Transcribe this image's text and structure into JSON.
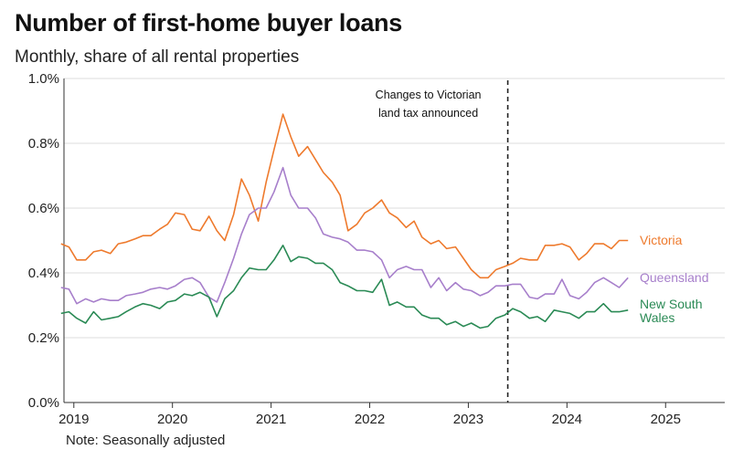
{
  "chart_data": {
    "type": "line",
    "title": "Number of first-home buyer loans",
    "subtitle": "Monthly, share of all rental properties",
    "note": "Note: Seasonally adjusted",
    "xlim": [
      2018.9,
      2025.6
    ],
    "ylim": [
      0,
      1.0
    ],
    "grid": true,
    "x_ticks": [
      2019,
      2020,
      2021,
      2022,
      2023,
      2024,
      2025
    ],
    "x_tick_labels": [
      "2019",
      "2020",
      "2021",
      "2022",
      "2023",
      "2024",
      "2025"
    ],
    "y_ticks": [
      0,
      0.2,
      0.4,
      0.6,
      0.8,
      1.0
    ],
    "y_tick_labels": [
      "0.0%",
      "0.2%",
      "0.4%",
      "0.6%",
      "0.8%",
      "1.0%"
    ],
    "annotation": {
      "x": 2023.4,
      "lines": [
        "Changes to Victorian",
        "land tax announced"
      ]
    },
    "series": [
      {
        "name": "Victoria",
        "label_lines": [
          "Victoria"
        ],
        "color": "#ee7a2d",
        "x": [
          2018.87,
          2018.95,
          2019.03,
          2019.12,
          2019.2,
          2019.28,
          2019.37,
          2019.45,
          2019.53,
          2019.62,
          2019.7,
          2019.78,
          2019.87,
          2019.95,
          2020.03,
          2020.12,
          2020.2,
          2020.28,
          2020.37,
          2020.45,
          2020.53,
          2020.62,
          2020.7,
          2020.78,
          2020.87,
          2020.95,
          2021.03,
          2021.12,
          2021.2,
          2021.28,
          2021.37,
          2021.45,
          2021.53,
          2021.62,
          2021.7,
          2021.78,
          2021.87,
          2021.95,
          2022.03,
          2022.12,
          2022.2,
          2022.28,
          2022.37,
          2022.45,
          2022.53,
          2022.62,
          2022.7,
          2022.78,
          2022.87,
          2022.95,
          2023.03,
          2023.12,
          2023.2,
          2023.28,
          2023.37,
          2023.45,
          2023.53,
          2023.62,
          2023.7,
          2023.78,
          2023.87,
          2023.95,
          2024.03,
          2024.12,
          2024.2,
          2024.28,
          2024.37,
          2024.45,
          2024.53,
          2024.62
        ],
        "values": [
          0.49,
          0.48,
          0.44,
          0.44,
          0.465,
          0.47,
          0.46,
          0.49,
          0.495,
          0.505,
          0.515,
          0.515,
          0.535,
          0.55,
          0.585,
          0.58,
          0.535,
          0.53,
          0.575,
          0.53,
          0.5,
          0.58,
          0.69,
          0.64,
          0.56,
          0.68,
          0.78,
          0.89,
          0.82,
          0.76,
          0.79,
          0.75,
          0.71,
          0.68,
          0.64,
          0.53,
          0.55,
          0.585,
          0.6,
          0.625,
          0.585,
          0.57,
          0.54,
          0.56,
          0.51,
          0.49,
          0.5,
          0.475,
          0.48,
          0.445,
          0.41,
          0.385,
          0.385,
          0.41,
          0.42,
          0.43,
          0.445,
          0.44,
          0.44,
          0.485,
          0.485,
          0.49,
          0.48,
          0.44,
          0.46,
          0.49,
          0.49,
          0.475,
          0.5,
          0.5
        ]
      },
      {
        "name": "Queensland",
        "label_lines": [
          "Queensland"
        ],
        "color": "#a77fcb",
        "x": [
          2018.87,
          2018.95,
          2019.03,
          2019.12,
          2019.2,
          2019.28,
          2019.37,
          2019.45,
          2019.53,
          2019.62,
          2019.7,
          2019.78,
          2019.87,
          2019.95,
          2020.03,
          2020.12,
          2020.2,
          2020.28,
          2020.37,
          2020.45,
          2020.53,
          2020.62,
          2020.7,
          2020.78,
          2020.87,
          2020.95,
          2021.03,
          2021.12,
          2021.2,
          2021.28,
          2021.37,
          2021.45,
          2021.53,
          2021.62,
          2021.7,
          2021.78,
          2021.87,
          2021.95,
          2022.03,
          2022.12,
          2022.2,
          2022.28,
          2022.37,
          2022.45,
          2022.53,
          2022.62,
          2022.7,
          2022.78,
          2022.87,
          2022.95,
          2023.03,
          2023.12,
          2023.2,
          2023.28,
          2023.37,
          2023.45,
          2023.53,
          2023.62,
          2023.7,
          2023.78,
          2023.87,
          2023.95,
          2024.03,
          2024.12,
          2024.2,
          2024.28,
          2024.37,
          2024.45,
          2024.53,
          2024.62
        ],
        "values": [
          0.355,
          0.35,
          0.305,
          0.32,
          0.31,
          0.32,
          0.315,
          0.315,
          0.33,
          0.335,
          0.34,
          0.35,
          0.355,
          0.35,
          0.36,
          0.38,
          0.385,
          0.37,
          0.325,
          0.31,
          0.37,
          0.445,
          0.52,
          0.58,
          0.6,
          0.6,
          0.65,
          0.725,
          0.64,
          0.6,
          0.6,
          0.57,
          0.52,
          0.51,
          0.505,
          0.495,
          0.47,
          0.47,
          0.465,
          0.44,
          0.385,
          0.41,
          0.42,
          0.41,
          0.41,
          0.355,
          0.385,
          0.345,
          0.37,
          0.35,
          0.345,
          0.33,
          0.34,
          0.36,
          0.36,
          0.365,
          0.365,
          0.325,
          0.32,
          0.335,
          0.335,
          0.38,
          0.33,
          0.32,
          0.34,
          0.37,
          0.385,
          0.37,
          0.355,
          0.385
        ]
      },
      {
        "name": "New South Wales",
        "label_lines": [
          "New South",
          "Wales"
        ],
        "color": "#2a8a55",
        "x": [
          2018.87,
          2018.95,
          2019.03,
          2019.12,
          2019.2,
          2019.28,
          2019.37,
          2019.45,
          2019.53,
          2019.62,
          2019.7,
          2019.78,
          2019.87,
          2019.95,
          2020.03,
          2020.12,
          2020.2,
          2020.28,
          2020.37,
          2020.45,
          2020.53,
          2020.62,
          2020.7,
          2020.78,
          2020.87,
          2020.95,
          2021.03,
          2021.12,
          2021.2,
          2021.28,
          2021.37,
          2021.45,
          2021.53,
          2021.62,
          2021.7,
          2021.78,
          2021.87,
          2021.95,
          2022.03,
          2022.12,
          2022.2,
          2022.28,
          2022.37,
          2022.45,
          2022.53,
          2022.62,
          2022.7,
          2022.78,
          2022.87,
          2022.95,
          2023.03,
          2023.12,
          2023.2,
          2023.28,
          2023.37,
          2023.45,
          2023.53,
          2023.62,
          2023.7,
          2023.78,
          2023.87,
          2023.95,
          2024.03,
          2024.12,
          2024.2,
          2024.28,
          2024.37,
          2024.45,
          2024.53,
          2024.62
        ],
        "values": [
          0.275,
          0.28,
          0.26,
          0.245,
          0.28,
          0.255,
          0.26,
          0.265,
          0.28,
          0.295,
          0.305,
          0.3,
          0.29,
          0.31,
          0.315,
          0.335,
          0.33,
          0.34,
          0.325,
          0.265,
          0.32,
          0.345,
          0.385,
          0.415,
          0.41,
          0.41,
          0.44,
          0.485,
          0.435,
          0.45,
          0.445,
          0.43,
          0.43,
          0.41,
          0.37,
          0.36,
          0.345,
          0.345,
          0.34,
          0.38,
          0.3,
          0.31,
          0.295,
          0.295,
          0.27,
          0.26,
          0.26,
          0.24,
          0.25,
          0.235,
          0.245,
          0.23,
          0.235,
          0.26,
          0.27,
          0.29,
          0.28,
          0.26,
          0.265,
          0.25,
          0.285,
          0.28,
          0.275,
          0.26,
          0.28,
          0.28,
          0.305,
          0.28,
          0.28,
          0.285
        ]
      }
    ]
  }
}
